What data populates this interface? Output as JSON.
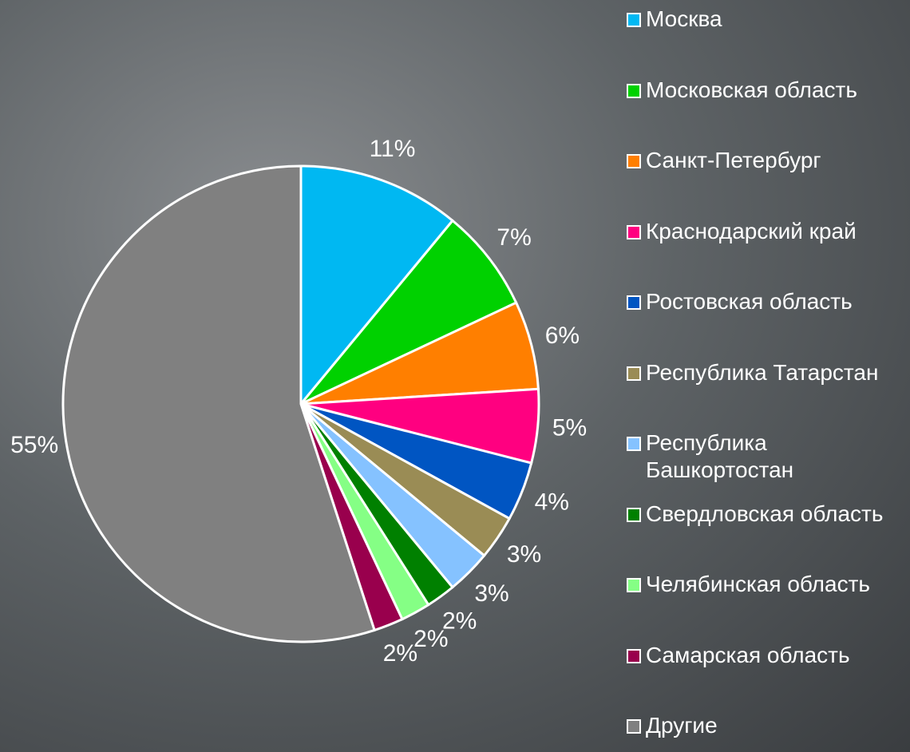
{
  "chart_data": {
    "type": "pie",
    "categories": [
      "Москва",
      "Московская область",
      "Санкт-Петербург",
      "Краснодарский край",
      "Ростовская область",
      "Республика Татарстан",
      "Республика Башкортостан",
      "Свердловская область",
      "Челябинская область",
      "Самарская область",
      "Другие"
    ],
    "values": [
      11,
      7,
      6,
      5,
      4,
      3,
      3,
      2,
      2,
      2,
      55
    ],
    "value_labels": [
      "11%",
      "7%",
      "6%",
      "5%",
      "4%",
      "3%",
      "3%",
      "2%",
      "2%",
      "2%",
      "55%"
    ],
    "colors": [
      "#00b8f2",
      "#00d100",
      "#ff7f00",
      "#ff0080",
      "#0055c2",
      "#9a8c55",
      "#85c2ff",
      "#008000",
      "#85ff85",
      "#99004d",
      "#808080"
    ],
    "legend": "right"
  }
}
